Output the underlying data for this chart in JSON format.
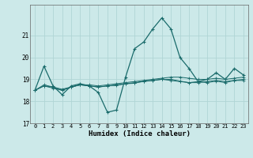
{
  "xlabel": "Humidex (Indice chaleur)",
  "xlim": [
    -0.5,
    23.5
  ],
  "ylim": [
    17,
    22.4
  ],
  "yticks": [
    17,
    18,
    19,
    20,
    21
  ],
  "xticks": [
    0,
    1,
    2,
    3,
    4,
    5,
    6,
    7,
    8,
    9,
    10,
    11,
    12,
    13,
    14,
    15,
    16,
    17,
    18,
    19,
    20,
    21,
    22,
    23
  ],
  "bg_color": "#cce9e9",
  "line_color": "#1a6b6b",
  "grid_color": "#b0d5d5",
  "series": [
    [
      18.5,
      19.6,
      18.7,
      18.3,
      18.7,
      18.8,
      18.7,
      18.4,
      17.5,
      17.6,
      19.1,
      20.4,
      20.7,
      21.3,
      21.8,
      21.3,
      20.0,
      19.5,
      18.9,
      19.0,
      19.3,
      19.0,
      19.5,
      19.2
    ],
    [
      18.5,
      18.75,
      18.65,
      18.55,
      18.65,
      18.75,
      18.75,
      18.7,
      18.75,
      18.8,
      18.85,
      18.9,
      18.95,
      19.0,
      19.05,
      19.1,
      19.1,
      19.05,
      19.0,
      19.0,
      19.05,
      19.0,
      19.05,
      19.1
    ],
    [
      18.5,
      18.7,
      18.65,
      18.5,
      18.65,
      18.75,
      18.7,
      18.65,
      18.7,
      18.75,
      18.8,
      18.85,
      18.9,
      18.95,
      19.0,
      18.95,
      18.9,
      18.85,
      18.85,
      18.9,
      18.95,
      18.9,
      18.95,
      19.0
    ],
    [
      18.5,
      18.7,
      18.6,
      18.5,
      18.65,
      18.75,
      18.7,
      18.65,
      18.7,
      18.72,
      18.8,
      18.82,
      18.92,
      18.95,
      19.0,
      19.0,
      18.92,
      18.85,
      18.9,
      18.85,
      18.92,
      18.85,
      18.95,
      18.95
    ]
  ]
}
